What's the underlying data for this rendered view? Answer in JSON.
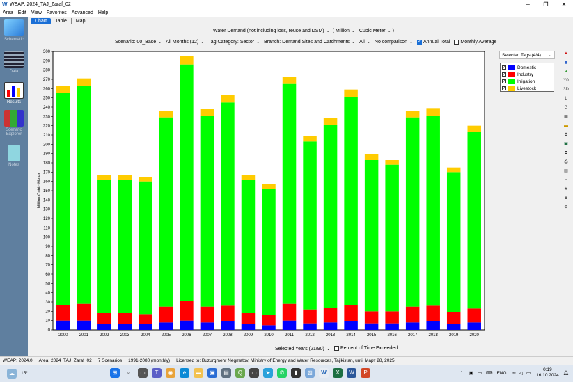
{
  "window": {
    "title": "WEAP: 2024_TAJ_Zaraf_02",
    "app_letter": "W"
  },
  "menu": [
    "Area",
    "Edit",
    "View",
    "Favorites",
    "Advanced",
    "Help"
  ],
  "sidebar": [
    {
      "label": "Schematic",
      "icon": "schematic-icon"
    },
    {
      "label": "Data",
      "icon": "data-icon"
    },
    {
      "label": "Results",
      "icon": "results-icon",
      "active": true
    },
    {
      "label": "Scenario Explorer",
      "icon": "scenario-explorer-icon"
    },
    {
      "label": "Notes",
      "icon": "notes-icon"
    }
  ],
  "tabs": [
    "Chart",
    "Table",
    "Map"
  ],
  "controls": {
    "variable": "Water Demand (not including loss, reuse and DSM)",
    "unit_scale": "Million",
    "unit": "Cubic Meter",
    "scenario": "Scenario: 00_Base",
    "months": "All Months (12)",
    "tag_category": "Tag Category: Sector",
    "branch": "Branch: Demand Sites and Catchments",
    "all": "All",
    "comparison": "No comparison",
    "annual_total": "Annual Total",
    "monthly_average": "Monthly Average"
  },
  "legend": {
    "header": "Selected Tags (4/4)",
    "items": [
      {
        "label": "Domestic",
        "color": "#0000ff"
      },
      {
        "label": "Industry",
        "color": "#ff0000"
      },
      {
        "label": "Irrigation",
        "color": "#00ff00"
      },
      {
        "label": "Livestock",
        "color": "#ffcc00"
      }
    ]
  },
  "bottom": {
    "selected_years": "Selected Years (21/90)",
    "percent": "Percent of Time Exceeded"
  },
  "chart_data": {
    "type": "bar",
    "stacked": true,
    "ylabel": "Million Cubic Meter",
    "ylim": [
      0,
      300
    ],
    "ytick_step": 10,
    "categories": [
      "2000",
      "2001",
      "2002",
      "2003",
      "2004",
      "2005",
      "2006",
      "2007",
      "2008",
      "2009",
      "2010",
      "2011",
      "2012",
      "2013",
      "2014",
      "2015",
      "2016",
      "2017",
      "2018",
      "2019",
      "2020"
    ],
    "series": [
      {
        "name": "Domestic",
        "color": "#0000ff",
        "values": [
          10,
          10,
          6,
          6,
          6,
          8,
          10,
          8,
          9,
          6,
          5,
          10,
          7,
          8,
          9,
          7,
          7,
          8,
          9,
          6,
          8
        ]
      },
      {
        "name": "Industry",
        "color": "#ff0000",
        "values": [
          17,
          18,
          12,
          12,
          11,
          17,
          21,
          17,
          17,
          12,
          11,
          18,
          15,
          16,
          18,
          13,
          13,
          17,
          17,
          13,
          15
        ]
      },
      {
        "name": "Irrigation",
        "color": "#00ff00",
        "values": [
          228,
          235,
          144,
          144,
          143,
          204,
          255,
          206,
          219,
          144,
          136,
          237,
          181,
          197,
          224,
          163,
          158,
          204,
          205,
          151,
          190
        ]
      },
      {
        "name": "Livestock",
        "color": "#ffcc00",
        "values": [
          8,
          8,
          5,
          5,
          5,
          7,
          9,
          7,
          8,
          5,
          5,
          8,
          6,
          7,
          8,
          6,
          5,
          7,
          8,
          5,
          7
        ]
      }
    ]
  },
  "status": {
    "version": "WEAP: 2024.0",
    "area": "Area: 2024_TAJ_Zaraf_02",
    "scenarios": "7 Scenarios",
    "years": "1991-2080 (monthly)",
    "license": "Licensed to: Buzurgmehr Negmatov, Ministry of Energy and Water Resources, Tajikistan, until Март 28, 2025"
  },
  "taskbar": {
    "weather": "15°",
    "lang": "ENG",
    "time": "0:19",
    "date": "16.10.2024"
  }
}
